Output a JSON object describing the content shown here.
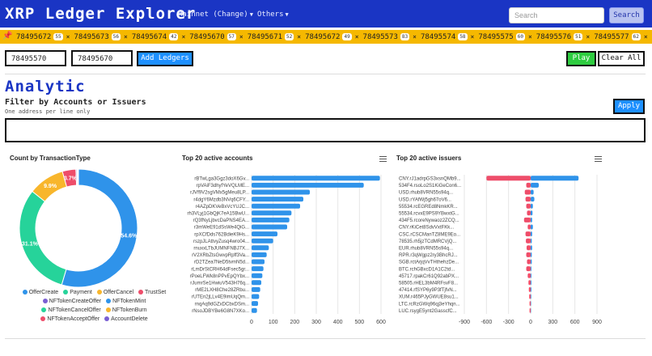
{
  "navbar": {
    "brand": "XRP Ledger Explorer",
    "network_label": "Mainnet (Change)",
    "others_label": "Others",
    "search_placeholder": "Search",
    "search_button": "Search"
  },
  "ledgers": [
    {
      "index": "78495672",
      "count": "55"
    },
    {
      "index": "78495673",
      "count": "56"
    },
    {
      "index": "78495674",
      "count": "42"
    },
    {
      "index": "78495670",
      "count": "57"
    },
    {
      "index": "78495671",
      "count": "52"
    },
    {
      "index": "78495672",
      "count": "49"
    },
    {
      "index": "78495573",
      "count": "83"
    },
    {
      "index": "78495574",
      "count": "58"
    },
    {
      "index": "78495575",
      "count": "60"
    },
    {
      "index": "78495576",
      "count": "51"
    },
    {
      "index": "78495577",
      "count": "62"
    }
  ],
  "controls": {
    "from_ledger": "78495570",
    "to_ledger": "78495670",
    "add_button": "Add Ledgers",
    "play_button": "Play",
    "clear_button": "Clear All"
  },
  "analytic": {
    "title": "Analytic",
    "filter_label": "Filter by Accounts or Issuers",
    "filter_hint": "One address per line only",
    "apply_button": "Apply",
    "filter_value": ""
  },
  "chart_data": [
    {
      "type": "pie",
      "title": "Count by TransactionType",
      "slices": [
        {
          "label": "OfferCreate",
          "value": 54.6,
          "color": "#2f93ea"
        },
        {
          "label": "Payment",
          "value": 31.1,
          "color": "#26d39a"
        },
        {
          "label": "OfferCancel",
          "value": 9.9,
          "color": "#f8b62c"
        },
        {
          "label": "TrustSet",
          "value": 3.7,
          "color": "#ee4d6a"
        },
        {
          "label": "NFTokenCreateOffer",
          "value": 0.3,
          "color": "#7a5fd3"
        },
        {
          "label": "NFTokenMint",
          "value": 0.2,
          "color": "#2f93ea"
        },
        {
          "label": "NFTokenCancelOffer",
          "value": 0.1,
          "color": "#26d39a"
        },
        {
          "label": "NFTokenBurn",
          "value": 0.05,
          "color": "#f8b62c"
        },
        {
          "label": "NFTokenAcceptOffer",
          "value": 0.05,
          "color": "#ee4d6a"
        },
        {
          "label": "AccountDelete",
          "value": 0.0,
          "color": "#7a5fd3"
        }
      ],
      "legend_position": "bottom"
    },
    {
      "type": "bar",
      "orientation": "horizontal",
      "title": "Top 20 active accounts",
      "categories": [
        "rBTwLga3Ggz3doX6Gv...",
        "rpVAiF3dhyfYeVQLME...",
        "rJVf9V2sgVMx5gMeu8LP...",
        "r4dgY6Mzdb3NVq6CFY...",
        "r4AZpDKVeBxVcYUJC...",
        "rh3VLyj1GbQjK7eA15BwU...",
        "rQ3fNyLjbvcDaPNS4EA...",
        "r3mWeE91dSsWe4QiG...",
        "rpXCfDds762BdieK9Hs...",
        "rszpJLAttvyZusq4wro04...",
        "rnuxxLTbJUMNFNBJ7X...",
        "rV2XRbZtsGwvpRpff3Va...",
        "rD2TZea7NeD5tvmN5d...",
        "rLmDrStCRH64dFsec5gr...",
        "rPoeLFWk8nPPvEpQYbx...",
        "rJumrSe1HwiuV543H76q...",
        "rME2LXH8Che28ZRbu...",
        "rUTEn2jLLv4E9imUqQm...",
        "rnqAq9dGZxDCbxDSm...",
        "rNsoJDBYBe6G8N7XKo..."
      ],
      "values": [
        595,
        520,
        270,
        240,
        225,
        185,
        175,
        165,
        120,
        100,
        80,
        70,
        60,
        55,
        50,
        45,
        40,
        35,
        30,
        25
      ],
      "xlim": [
        0,
        600
      ],
      "xticks": [
        0,
        100,
        200,
        300,
        400,
        500,
        600
      ],
      "color": "#2f93ea"
    },
    {
      "type": "bar",
      "orientation": "horizontal",
      "title": "Top 20 active issuers",
      "categories": [
        "CNY.rJ1adrpGS3xsnQMb9...",
        "534F4.rsoLo2S1KiGeCon6...",
        "USD.rhub8VRN55s94q...",
        "USD.rYAfWj5gh67oV6...",
        "55534.rcEGREd8NmkKR...",
        "55534.rcvxE9PS9YBwxtG...",
        "434F5.rcoreNywaoz2ZCQ...",
        "CNY.rKiCet8SdvVxtFKk...",
        "CSC.rCSCManTZ8ME9Eo...",
        "78535.rh5jzTCdMRCVjQ...",
        "EUR.rhub8VRN55s94q...",
        "RPR.r3qWgpz2ry3BhcRJ...",
        "SGB.rctArjqVvTHthehzDe...",
        "BTC.rchGBxcD1A1C2td...",
        "45717.rpakCr61Q92abPX...",
        "58505.rHEL3bM4RFsvF8...",
        "47414.rfSYP6y9P3fTjfvN...",
        "XUM.r465PJyGWUE8su1...",
        "LTC.rcRzGWq96qj3eYhqn...",
        "LUC.rsygE5ynt2GasscfC..."
      ],
      "values": [
        [
          -600,
          650
        ],
        [
          -60,
          110
        ],
        [
          -80,
          40
        ],
        [
          -70,
          50
        ],
        [
          -60,
          30
        ],
        [
          -50,
          25
        ],
        [
          -90,
          20
        ],
        [
          -40,
          30
        ],
        [
          -70,
          20
        ],
        [
          -65,
          15
        ],
        [
          -55,
          20
        ],
        [
          -60,
          15
        ],
        [
          -50,
          15
        ],
        [
          -60,
          10
        ],
        [
          -40,
          10
        ],
        [
          -30,
          10
        ],
        [
          -25,
          10
        ],
        [
          -20,
          8
        ],
        [
          -15,
          6
        ],
        [
          -15,
          5
        ]
      ],
      "xlim": [
        -900,
        900
      ],
      "xticks": [
        -900,
        -600,
        -300,
        0,
        300,
        600,
        900
      ],
      "negative_color": "#ee4d6a",
      "positive_color": "#2f93ea"
    }
  ]
}
